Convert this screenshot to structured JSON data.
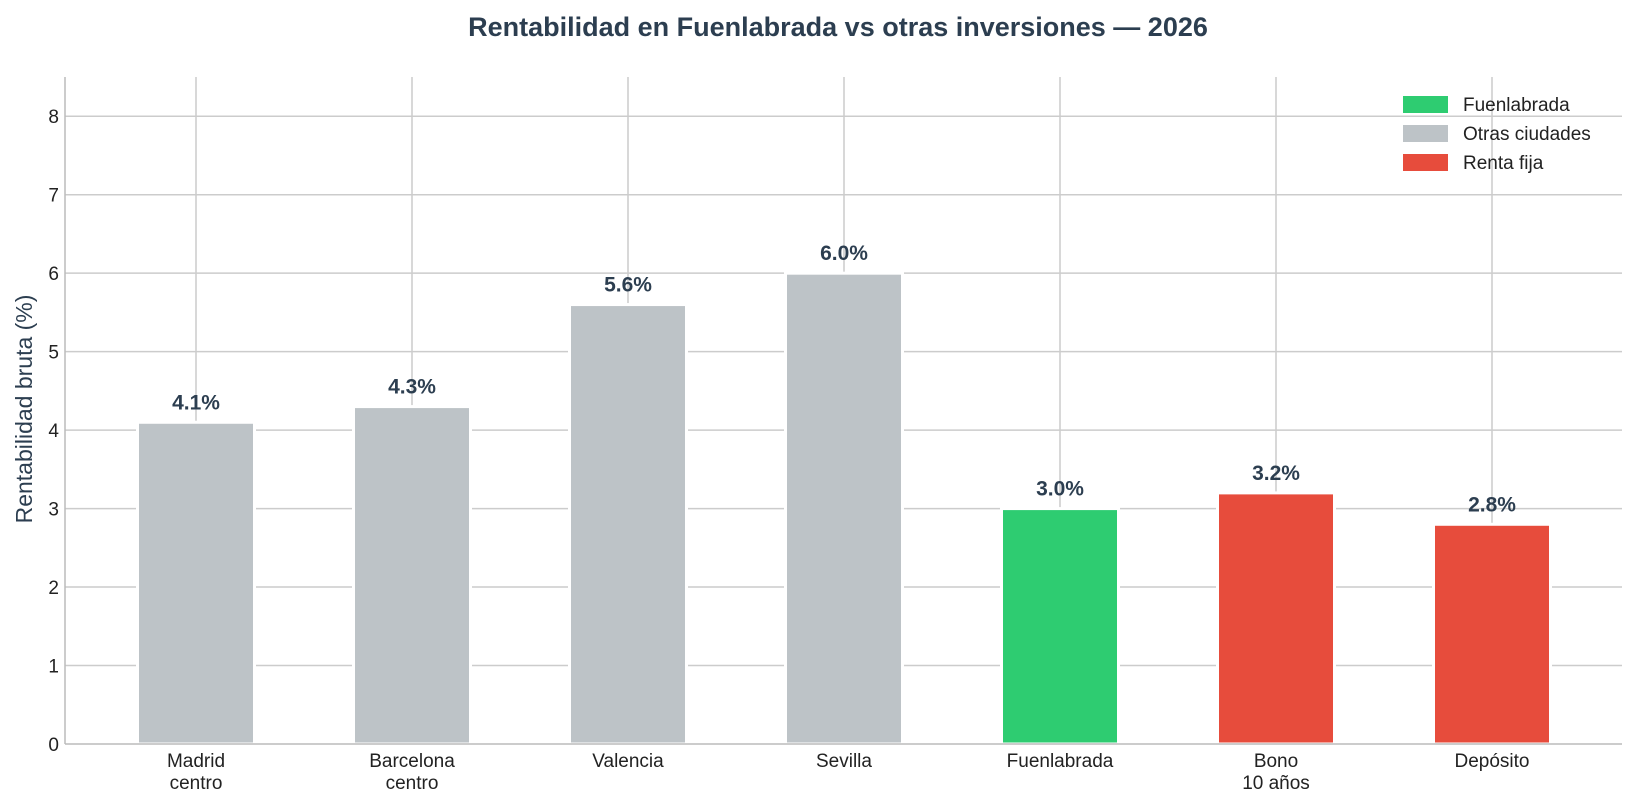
{
  "chart_data": {
    "type": "bar",
    "title": "Rentabilidad en Fuenlabrada vs otras inversiones — 2026",
    "ylabel": "Rentabilidad bruta (%)",
    "xlabel": "",
    "ylim": [
      0,
      8.5
    ],
    "yticks": [
      0,
      1,
      2,
      3,
      4,
      5,
      6,
      7,
      8
    ],
    "grid": true,
    "legend_position": "top-right",
    "categories": [
      [
        "Madrid",
        "centro"
      ],
      [
        "Barcelona",
        "centro"
      ],
      [
        "Valencia"
      ],
      [
        "Sevilla"
      ],
      [
        "Fuenlabrada"
      ],
      [
        "Bono",
        "10 años"
      ],
      [
        "Depósito"
      ]
    ],
    "values": [
      4.1,
      4.3,
      5.6,
      6.0,
      3.0,
      3.2,
      2.8
    ],
    "data_labels": [
      "4.1%",
      "4.3%",
      "5.6%",
      "6.0%",
      "3.0%",
      "3.2%",
      "2.8%"
    ],
    "groups": [
      "Otras ciudades",
      "Otras ciudades",
      "Otras ciudades",
      "Otras ciudades",
      "Fuenlabrada",
      "Renta fija",
      "Renta fija"
    ],
    "legend": [
      {
        "name": "Fuenlabrada",
        "color": "#2ecc71"
      },
      {
        "name": "Otras ciudades",
        "color": "#bdc3c7"
      },
      {
        "name": "Renta fija",
        "color": "#e74c3c"
      }
    ]
  }
}
